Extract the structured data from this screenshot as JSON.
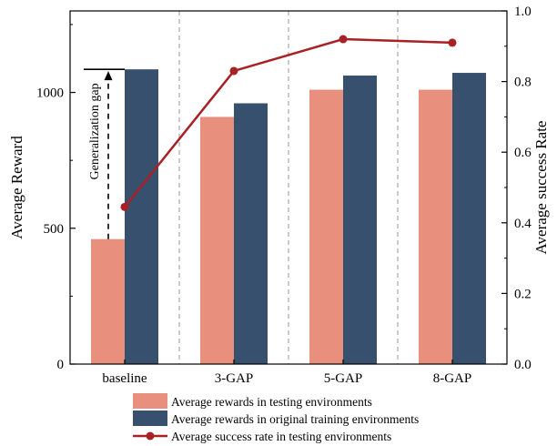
{
  "chart_data": {
    "type": "bar",
    "categories": [
      "baseline",
      "3-GAP",
      "5-GAP",
      "8-GAP"
    ],
    "series": [
      {
        "name": "Average rewards in testing environments",
        "kind": "bar",
        "axis": "left",
        "color": "#E8907D",
        "values": [
          460,
          910,
          1010,
          1010
        ]
      },
      {
        "name": "Average rewards in original training environments",
        "kind": "bar",
        "axis": "left",
        "color": "#36506E",
        "values": [
          1085,
          960,
          1062,
          1072
        ]
      },
      {
        "name": "Average success rate in testing environments",
        "kind": "line",
        "axis": "right",
        "color": "#A82125",
        "values": [
          0.445,
          0.83,
          0.92,
          0.91
        ]
      }
    ],
    "ylabel": "Average Reward",
    "y2label": "Average success Rate",
    "ylim": [
      0,
      1300
    ],
    "y2lim": [
      0,
      1.0
    ],
    "yticks": [
      "0",
      "500",
      "1000"
    ],
    "y2ticks": [
      "0.0",
      "0.2",
      "0.4",
      "0.6",
      "0.8",
      "1.0"
    ],
    "grid": false,
    "category_separators": "dashed",
    "legend_position": "bottom",
    "annotation": {
      "text": "Generalization gap",
      "category": "baseline",
      "from": 460,
      "to": 1085
    }
  }
}
